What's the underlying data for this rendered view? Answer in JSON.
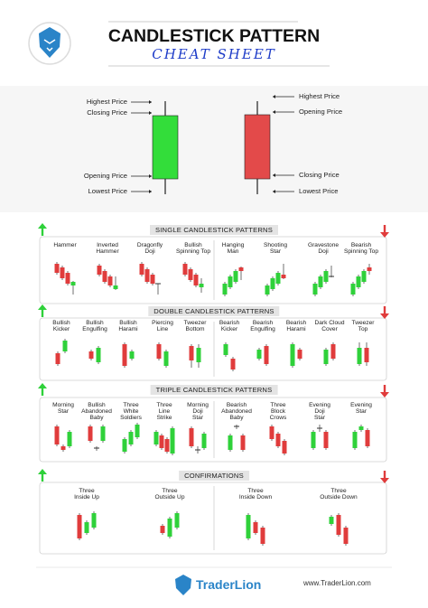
{
  "header": {
    "title": "CANDLESTICK PATTERN",
    "subtitle": "CHEAT SHEET"
  },
  "anatomy": {
    "bullish": [
      "Highest Price",
      "Closing Price",
      "Opening Price",
      "Lowest Price"
    ],
    "bearish": [
      "Highest Price",
      "Opening Price",
      "Closing Price",
      "Lowest Price"
    ]
  },
  "sections": [
    {
      "title": "SINGLE CANDLESTICK PATTERNS",
      "bullish": [
        "Hammer",
        "Inverted\nHammer",
        "Dragonfly\nDoji",
        "Bullish\nSpinning Top"
      ],
      "bearish": [
        "Hanging\nMan",
        "Shooting\nStar",
        "Gravestone\nDoji",
        "Bearish\nSpinning Top"
      ]
    },
    {
      "title": "DOUBLE CANDLESTICK PATTERNS",
      "bullish": [
        "Bullish\nKicker",
        "Bullish\nEngulfing",
        "Bullish\nHarami",
        "Piercing\nLine",
        "Tweezer\nBottom"
      ],
      "bearish": [
        "Bearish\nKicker",
        "Bearish\nEngulfing",
        "Bearish\nHarami",
        "Dark Cloud\nCover",
        "Tweezer\nTop"
      ]
    },
    {
      "title": "TRIPLE CANDLESTICK PATTERNS",
      "bullish": [
        "Morning\nStar",
        "Bullish\nAbandoned\nBaby",
        "Three\nWhite\nSoldiers",
        "Three\nLine\nStrike",
        "Morning\nDoji\nStar"
      ],
      "bearish": [
        "Bearish\nAbandoned\nBaby",
        "Three\nBlock\nCrows",
        "Evening\nDoji\nStar",
        "Evening\nStar"
      ]
    },
    {
      "title": "CONFIRMATIONS",
      "bullish": [
        "Three\nInside Up",
        "Three\nOutside Up"
      ],
      "bearish": [
        "Three\nInside Down",
        "Three\nOutside Down"
      ]
    }
  ],
  "footer": {
    "brand": "TraderLion",
    "url": "www.TraderLion.com"
  }
}
